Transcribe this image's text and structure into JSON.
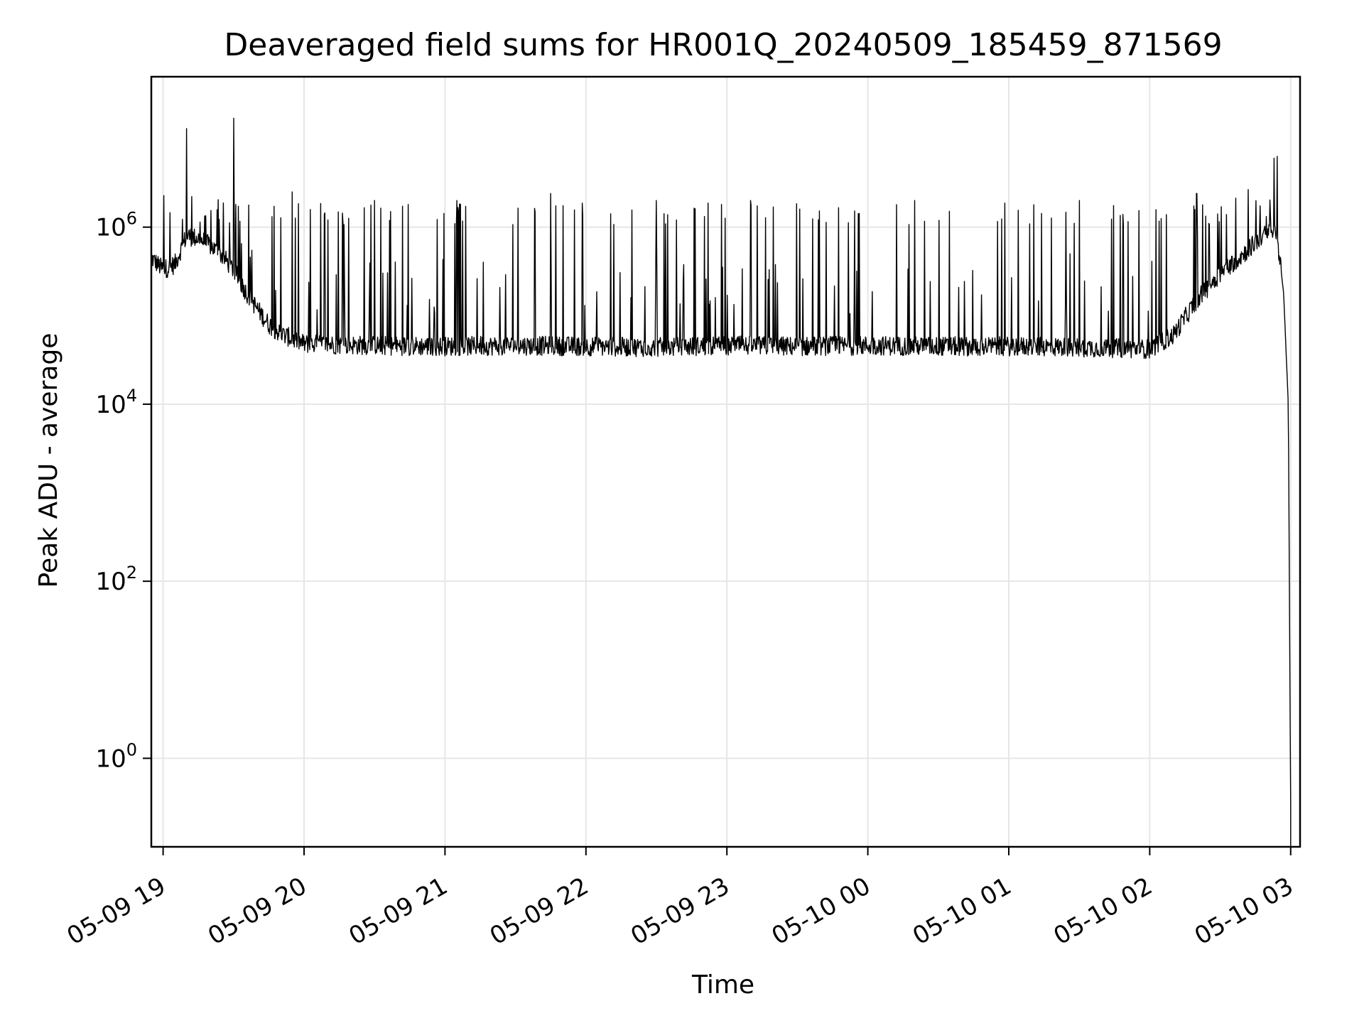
{
  "chart_data": {
    "type": "line",
    "title": "Deaveraged field sums for HR001Q_20240509_185459_871569",
    "xlabel": "Time",
    "ylabel": "Peak ADU - average",
    "yscale": "log",
    "ylim": [
      0.1,
      50000000
    ],
    "xlim": [
      "2024-05-09 18:54:59",
      "2024-05-10 03:04:00"
    ],
    "grid": true,
    "color": "#000000",
    "x_ticks": [
      {
        "value": "2024-05-09 19:00",
        "label": "05-09 19"
      },
      {
        "value": "2024-05-09 20:00",
        "label": "05-09 20"
      },
      {
        "value": "2024-05-09 21:00",
        "label": "05-09 21"
      },
      {
        "value": "2024-05-09 22:00",
        "label": "05-09 22"
      },
      {
        "value": "2024-05-09 23:00",
        "label": "05-09 23"
      },
      {
        "value": "2024-05-10 00:00",
        "label": "05-10 00"
      },
      {
        "value": "2024-05-10 01:00",
        "label": "05-10 01"
      },
      {
        "value": "2024-05-10 02:00",
        "label": "05-10 02"
      },
      {
        "value": "2024-05-10 03:00",
        "label": "05-10 03"
      }
    ],
    "y_ticks": [
      {
        "value": 1,
        "base": "10",
        "exp": "0"
      },
      {
        "value": 100,
        "base": "10",
        "exp": "2"
      },
      {
        "value": 10000,
        "base": "10",
        "exp": "4"
      },
      {
        "value": 1000000,
        "base": "10",
        "exp": "6"
      }
    ],
    "series": [
      {
        "x": [
          "2024-05-09 18:55",
          "2024-05-09 19:00",
          "2024-05-09 19:05",
          "2024-05-09 19:10",
          "2024-05-09 19:15",
          "2024-05-09 19:20",
          "2024-05-09 19:25",
          "2024-05-09 19:30",
          "2024-05-09 19:35",
          "2024-05-09 19:40",
          "2024-05-09 19:45",
          "2024-05-09 19:50",
          "2024-05-09 19:55",
          "2024-05-09 20:00",
          "2024-05-09 20:30",
          "2024-05-09 21:00",
          "2024-05-09 21:30",
          "2024-05-09 22:00",
          "2024-05-09 22:30",
          "2024-05-09 23:00",
          "2024-05-09 23:30",
          "2024-05-10 00:00",
          "2024-05-10 00:30",
          "2024-05-10 01:00",
          "2024-05-10 01:30",
          "2024-05-10 02:00",
          "2024-05-10 02:10",
          "2024-05-10 02:20",
          "2024-05-10 02:30",
          "2024-05-10 02:40",
          "2024-05-10 02:48",
          "2024-05-10 02:54",
          "2024-05-10 02:57",
          "2024-05-10 02:59",
          "2024-05-10 03:00"
        ],
        "y": [
          450000,
          330000,
          380000,
          800000,
          750000,
          620000,
          480000,
          330000,
          190000,
          120000,
          80000,
          62000,
          55000,
          48000,
          46000,
          45000,
          46000,
          45000,
          44000,
          46000,
          45000,
          46000,
          45000,
          45000,
          44000,
          42000,
          60000,
          150000,
          300000,
          500000,
          800000,
          900000,
          180000,
          10000,
          0.3
        ]
      }
    ],
    "spikes": [
      {
        "x": "2024-05-09 19:10",
        "y": 13000000
      },
      {
        "x": "2024-05-09 19:30",
        "y": 17000000
      },
      {
        "x": "2024-05-09 19:55",
        "y": 2500000
      },
      {
        "x": "2024-05-09 20:30",
        "y": 2000000
      },
      {
        "x": "2024-05-09 21:05",
        "y": 2000000
      },
      {
        "x": "2024-05-09 21:45",
        "y": 2400000
      },
      {
        "x": "2024-05-09 22:30",
        "y": 2000000
      },
      {
        "x": "2024-05-09 23:10",
        "y": 2000000
      },
      {
        "x": "2024-05-10 00:20",
        "y": 2000000
      },
      {
        "x": "2024-05-10 01:30",
        "y": 2000000
      },
      {
        "x": "2024-05-10 02:20",
        "y": 2400000
      },
      {
        "x": "2024-05-10 02:53",
        "y": 6000000
      }
    ]
  }
}
